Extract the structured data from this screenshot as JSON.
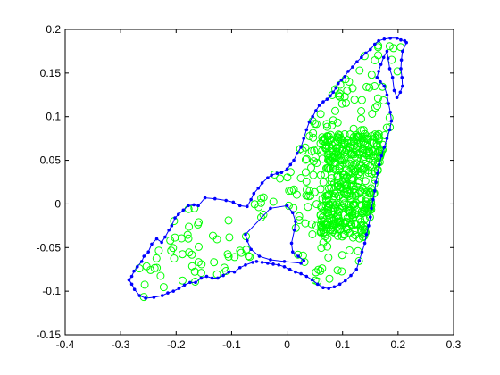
{
  "colors": {
    "background": "#ffffff",
    "axes": "#000000",
    "boundary": "#0000ff",
    "points": "#00ff00"
  },
  "chart_data": {
    "type": "scatter",
    "title": "",
    "xlabel": "",
    "ylabel": "",
    "xlim": [
      -0.4,
      0.3
    ],
    "ylim": [
      -0.15,
      0.2
    ],
    "grid": false,
    "box": true,
    "x_ticks": [
      "-0.4",
      "-0.3",
      "-0.2",
      "-0.1",
      "0",
      "0.1",
      "0.2",
      "0.3"
    ],
    "y_ticks": [
      "-0.15",
      "-0.1",
      "-0.05",
      "0",
      "0.05",
      "0.1",
      "0.15",
      "0.2"
    ],
    "x_tick_values": [
      -0.4,
      -0.3,
      -0.2,
      -0.1,
      0,
      0.1,
      0.2,
      0.3
    ],
    "y_tick_values": [
      -0.15,
      -0.1,
      -0.05,
      0,
      0.05,
      0.1,
      0.15,
      0.2
    ],
    "series": [
      {
        "kind": "polygon",
        "marker": "dot",
        "color": "#0000ff",
        "points": [
          [
            -0.285,
            -0.087
          ],
          [
            -0.28,
            -0.083
          ],
          [
            -0.276,
            -0.077
          ],
          [
            -0.27,
            -0.072
          ],
          [
            -0.262,
            -0.066
          ],
          [
            -0.258,
            -0.06
          ],
          [
            -0.25,
            -0.055
          ],
          [
            -0.244,
            -0.046
          ],
          [
            -0.235,
            -0.04
          ],
          [
            -0.226,
            -0.044
          ],
          [
            -0.22,
            -0.038
          ],
          [
            -0.213,
            -0.03
          ],
          [
            -0.208,
            -0.025
          ],
          [
            -0.202,
            -0.016
          ],
          [
            -0.196,
            -0.012
          ],
          [
            -0.187,
            -0.007
          ],
          [
            -0.178,
            -0.002
          ],
          [
            -0.168,
            -0.001
          ],
          [
            -0.16,
            -0.002
          ],
          [
            -0.148,
            0.007
          ],
          [
            -0.13,
            0.006
          ],
          [
            -0.11,
            0.004
          ],
          [
            -0.097,
            0.002
          ],
          [
            -0.085,
            -0.002
          ],
          [
            -0.072,
            -0.003
          ],
          [
            -0.065,
            0.005
          ],
          [
            -0.06,
            0.012
          ],
          [
            -0.052,
            0.018
          ],
          [
            -0.045,
            0.024
          ],
          [
            -0.035,
            0.03
          ],
          [
            -0.028,
            0.033
          ],
          [
            -0.018,
            0.035
          ],
          [
            -0.01,
            0.036
          ],
          [
            0.0,
            0.04
          ],
          [
            0.006,
            0.045
          ],
          [
            0.012,
            0.05
          ],
          [
            0.018,
            0.058
          ],
          [
            0.025,
            0.065
          ],
          [
            0.03,
            0.075
          ],
          [
            0.035,
            0.085
          ],
          [
            0.04,
            0.094
          ],
          [
            0.046,
            0.1
          ],
          [
            0.052,
            0.107
          ],
          [
            0.058,
            0.113
          ],
          [
            0.065,
            0.117
          ],
          [
            0.072,
            0.12
          ],
          [
            0.078,
            0.124
          ],
          [
            0.083,
            0.128
          ],
          [
            0.088,
            0.133
          ],
          [
            0.092,
            0.138
          ],
          [
            0.098,
            0.142
          ],
          [
            0.104,
            0.146
          ],
          [
            0.11,
            0.152
          ],
          [
            0.118,
            0.157
          ],
          [
            0.126,
            0.163
          ],
          [
            0.134,
            0.168
          ],
          [
            0.142,
            0.173
          ],
          [
            0.15,
            0.177
          ],
          [
            0.158,
            0.183
          ],
          [
            0.165,
            0.187
          ],
          [
            0.175,
            0.189
          ],
          [
            0.186,
            0.19
          ],
          [
            0.198,
            0.19
          ],
          [
            0.205,
            0.188
          ],
          [
            0.212,
            0.187
          ],
          [
            0.215,
            0.185
          ],
          [
            0.208,
            0.175
          ],
          [
            0.206,
            0.165
          ],
          [
            0.205,
            0.155
          ],
          [
            0.207,
            0.145
          ],
          [
            0.208,
            0.135
          ],
          [
            0.204,
            0.128
          ],
          [
            0.198,
            0.122
          ],
          [
            0.193,
            0.13
          ],
          [
            0.19,
            0.145
          ],
          [
            0.185,
            0.155
          ],
          [
            0.182,
            0.167
          ],
          [
            0.18,
            0.175
          ],
          [
            0.174,
            0.168
          ],
          [
            0.169,
            0.16
          ],
          [
            0.165,
            0.152
          ],
          [
            0.162,
            0.145
          ],
          [
            0.168,
            0.14
          ],
          [
            0.175,
            0.135
          ],
          [
            0.18,
            0.125
          ],
          [
            0.183,
            0.115
          ],
          [
            0.186,
            0.105
          ],
          [
            0.188,
            0.095
          ],
          [
            0.185,
            0.085
          ],
          [
            0.18,
            0.075
          ],
          [
            0.175,
            0.065
          ],
          [
            0.17,
            0.055
          ],
          [
            0.166,
            0.045
          ],
          [
            0.163,
            0.035
          ],
          [
            0.16,
            0.025
          ],
          [
            0.158,
            0.015
          ],
          [
            0.155,
            0.005
          ],
          [
            0.152,
            -0.005
          ],
          [
            0.15,
            -0.015
          ],
          [
            0.147,
            -0.025
          ],
          [
            0.143,
            -0.035
          ],
          [
            0.14,
            -0.045
          ],
          [
            0.135,
            -0.055
          ],
          [
            0.13,
            -0.065
          ],
          [
            0.125,
            -0.075
          ],
          [
            0.115,
            -0.082
          ],
          [
            0.105,
            -0.088
          ],
          [
            0.095,
            -0.092
          ],
          [
            0.085,
            -0.095
          ],
          [
            0.075,
            -0.097
          ],
          [
            0.065,
            -0.096
          ],
          [
            0.055,
            -0.092
          ],
          [
            0.045,
            -0.087
          ],
          [
            0.035,
            -0.083
          ],
          [
            0.025,
            -0.08
          ],
          [
            0.015,
            -0.078
          ],
          [
            0.005,
            -0.075
          ],
          [
            -0.005,
            -0.072
          ],
          [
            -0.015,
            -0.07
          ],
          [
            -0.025,
            -0.069
          ],
          [
            -0.035,
            -0.068
          ],
          [
            -0.045,
            -0.067
          ],
          [
            -0.055,
            -0.066
          ],
          [
            -0.062,
            -0.067
          ],
          [
            -0.075,
            -0.07
          ],
          [
            -0.085,
            -0.073
          ],
          [
            -0.095,
            -0.078
          ],
          [
            -0.105,
            -0.078
          ],
          [
            -0.115,
            -0.082
          ],
          [
            -0.125,
            -0.085
          ],
          [
            -0.135,
            -0.085
          ],
          [
            -0.145,
            -0.083
          ],
          [
            -0.155,
            -0.085
          ],
          [
            -0.165,
            -0.09
          ],
          [
            -0.175,
            -0.09
          ],
          [
            -0.185,
            -0.093
          ],
          [
            -0.195,
            -0.097
          ],
          [
            -0.205,
            -0.1
          ],
          [
            -0.215,
            -0.102
          ],
          [
            -0.225,
            -0.105
          ],
          [
            -0.24,
            -0.107
          ],
          [
            -0.255,
            -0.108
          ],
          [
            -0.266,
            -0.105
          ],
          [
            -0.275,
            -0.098
          ],
          [
            -0.28,
            -0.092
          ]
        ],
        "hole": [
          [
            -0.075,
            -0.035
          ],
          [
            -0.03,
            -0.005
          ],
          [
            0.0,
            -0.002
          ],
          [
            0.01,
            -0.01
          ],
          [
            0.015,
            -0.02
          ],
          [
            0.013,
            -0.03
          ],
          [
            0.008,
            -0.045
          ],
          [
            0.01,
            -0.055
          ],
          [
            0.02,
            -0.06
          ],
          [
            0.03,
            -0.065
          ],
          [
            0.025,
            -0.068
          ],
          [
            -0.005,
            -0.066
          ],
          [
            -0.03,
            -0.064
          ],
          [
            -0.05,
            -0.06
          ],
          [
            -0.065,
            -0.052
          ],
          [
            -0.072,
            -0.042
          ]
        ]
      },
      {
        "kind": "scatter",
        "marker": "circle",
        "color": "#00ff00"
      }
    ]
  }
}
